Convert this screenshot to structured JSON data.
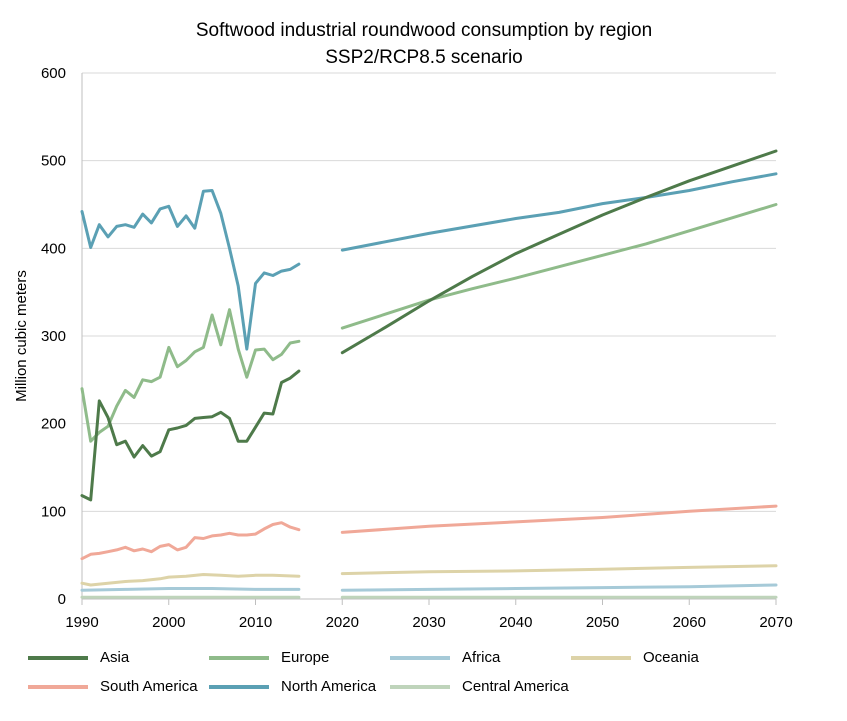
{
  "chart_data": {
    "type": "line",
    "title": "Softwood industrial roundwood consumption by region",
    "subtitle": "SSP2/RCP8.5 scenario",
    "xlabel": "",
    "ylabel": "Million cubic meters",
    "xlim": [
      1990,
      2070
    ],
    "ylim": [
      0,
      600
    ],
    "x_ticks": [
      "1990",
      "2000",
      "2010",
      "2020",
      "2030",
      "2040",
      "2050",
      "2060",
      "2070"
    ],
    "y_ticks": [
      "0",
      "100",
      "200",
      "300",
      "400",
      "500",
      "600"
    ],
    "grid": "horizontal",
    "legend": "bottom",
    "series": [
      {
        "name": "Asia",
        "color": "#4e7a4a",
        "historical": {
          "x": [
            1990,
            1991,
            1992,
            1993,
            1994,
            1995,
            1996,
            1997,
            1998,
            1999,
            2000,
            2001,
            2002,
            2003,
            2004,
            2005,
            2006,
            2007,
            2008,
            2009,
            2010,
            2011,
            2012,
            2013,
            2014,
            2015
          ],
          "y": [
            118,
            113,
            226,
            207,
            176,
            180,
            162,
            175,
            163,
            168,
            193,
            195,
            198,
            206,
            207,
            208,
            213,
            206,
            180,
            180,
            196,
            212,
            211,
            247,
            252,
            260
          ]
        },
        "projection": {
          "x": [
            2020,
            2025,
            2030,
            2035,
            2040,
            2045,
            2050,
            2055,
            2060,
            2065,
            2070
          ],
          "y": [
            281,
            310,
            340,
            368,
            394,
            416,
            438,
            458,
            477,
            494,
            511
          ]
        }
      },
      {
        "name": "Europe",
        "color": "#8fbb8a",
        "historical": {
          "x": [
            1990,
            1991,
            1992,
            1993,
            1994,
            1995,
            1996,
            1997,
            1998,
            1999,
            2000,
            2001,
            2002,
            2003,
            2004,
            2005,
            2006,
            2007,
            2008,
            2009,
            2010,
            2011,
            2012,
            2013,
            2014,
            2015
          ],
          "y": [
            240,
            180,
            190,
            197,
            220,
            238,
            230,
            250,
            248,
            253,
            287,
            265,
            272,
            282,
            287,
            324,
            290,
            330,
            285,
            253,
            284,
            285,
            273,
            279,
            292,
            294
          ]
        },
        "projection": {
          "x": [
            2020,
            2025,
            2030,
            2035,
            2040,
            2045,
            2050,
            2055,
            2060,
            2065,
            2070
          ],
          "y": [
            309,
            325,
            341,
            354,
            366,
            379,
            392,
            405,
            420,
            435,
            450
          ]
        }
      },
      {
        "name": "Africa",
        "color": "#a6cad8",
        "historical": {
          "x": [
            1990,
            1995,
            2000,
            2005,
            2010,
            2015
          ],
          "y": [
            10,
            11,
            12,
            12,
            11,
            11
          ]
        },
        "projection": {
          "x": [
            2020,
            2030,
            2040,
            2050,
            2060,
            2070
          ],
          "y": [
            10,
            11,
            12,
            13,
            14,
            16
          ]
        }
      },
      {
        "name": "Oceania",
        "color": "#ddd3a8",
        "historical": {
          "x": [
            1990,
            1991,
            1993,
            1995,
            1997,
            1999,
            2000,
            2002,
            2004,
            2006,
            2008,
            2010,
            2012,
            2015
          ],
          "y": [
            18,
            16,
            18,
            20,
            21,
            23,
            25,
            26,
            28,
            27,
            26,
            27,
            27,
            26
          ]
        },
        "projection": {
          "x": [
            2020,
            2030,
            2040,
            2050,
            2060,
            2070
          ],
          "y": [
            29,
            31,
            32,
            34,
            36,
            38
          ]
        }
      },
      {
        "name": "South America",
        "color": "#f0a898",
        "historical": {
          "x": [
            1990,
            1991,
            1992,
            1993,
            1994,
            1995,
            1996,
            1997,
            1998,
            1999,
            2000,
            2001,
            2002,
            2003,
            2004,
            2005,
            2006,
            2007,
            2008,
            2009,
            2010,
            2011,
            2012,
            2013,
            2014,
            2015
          ],
          "y": [
            46,
            51,
            52,
            54,
            56,
            59,
            55,
            57,
            54,
            60,
            62,
            56,
            59,
            70,
            69,
            72,
            73,
            75,
            73,
            73,
            74,
            80,
            85,
            87,
            82,
            79
          ]
        },
        "projection": {
          "x": [
            2020,
            2030,
            2040,
            2050,
            2060,
            2070
          ],
          "y": [
            76,
            83,
            88,
            93,
            100,
            106
          ]
        }
      },
      {
        "name": "North America",
        "color": "#5ba0b4",
        "historical": {
          "x": [
            1990,
            1991,
            1992,
            1993,
            1994,
            1995,
            1996,
            1997,
            1998,
            1999,
            2000,
            2001,
            2002,
            2003,
            2004,
            2005,
            2006,
            2007,
            2008,
            2009,
            2010,
            2011,
            2012,
            2013,
            2014,
            2015
          ],
          "y": [
            442,
            401,
            427,
            413,
            425,
            427,
            424,
            439,
            429,
            445,
            448,
            425,
            437,
            423,
            465,
            466,
            440,
            400,
            357,
            285,
            360,
            372,
            369,
            374,
            376,
            382
          ]
        },
        "projection": {
          "x": [
            2020,
            2030,
            2040,
            2045,
            2050,
            2055,
            2060,
            2065,
            2070
          ],
          "y": [
            398,
            417,
            434,
            441,
            451,
            458,
            466,
            476,
            485
          ]
        }
      },
      {
        "name": "Central America",
        "color": "#bfd4bb",
        "historical": {
          "x": [
            1990,
            2000,
            2010,
            2015
          ],
          "y": [
            2,
            2,
            2,
            2
          ]
        },
        "projection": {
          "x": [
            2020,
            2030,
            2040,
            2050,
            2060,
            2070
          ],
          "y": [
            2,
            2,
            2,
            2,
            2,
            2
          ]
        }
      }
    ]
  }
}
